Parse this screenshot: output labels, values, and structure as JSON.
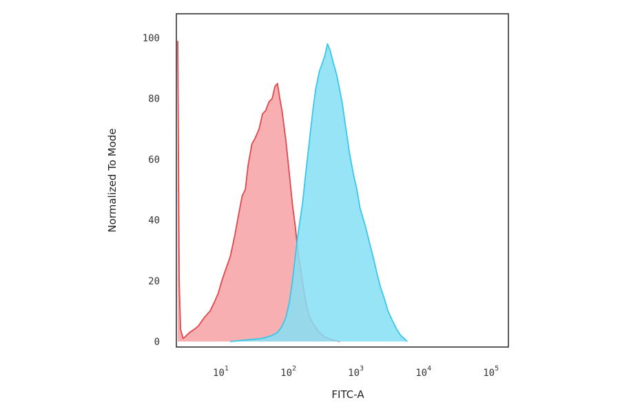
{
  "chart_data": {
    "type": "area",
    "title": "",
    "xlabel": "FITC-A",
    "ylabel": "Normalized To Mode",
    "x_scale": "log",
    "xlim": [
      2,
      150000
    ],
    "ylim": [
      0,
      100
    ],
    "x_ticks": [
      {
        "value": 10,
        "base": "10",
        "exp": "1"
      },
      {
        "value": 100,
        "base": "10",
        "exp": "2"
      },
      {
        "value": 1000,
        "base": "10",
        "exp": "3"
      },
      {
        "value": 10000,
        "base": "10",
        "exp": "4"
      },
      {
        "value": 100000,
        "base": "10",
        "exp": "5"
      }
    ],
    "y_ticks": [
      "0",
      "20",
      "40",
      "60",
      "80",
      "100"
    ],
    "grid": false,
    "legend": "none",
    "series": [
      {
        "color": "#e0474c",
        "fill": "#f7a1a3",
        "points": [
          [
            2.0,
            99
          ],
          [
            2.05,
            60
          ],
          [
            2.1,
            20
          ],
          [
            2.2,
            4
          ],
          [
            2.4,
            1
          ],
          [
            2.7,
            2
          ],
          [
            3.0,
            3
          ],
          [
            3.5,
            4
          ],
          [
            4.0,
            5
          ],
          [
            5.0,
            8
          ],
          [
            6.0,
            10
          ],
          [
            7.0,
            13
          ],
          [
            8.0,
            16
          ],
          [
            9.0,
            20
          ],
          [
            10,
            23
          ],
          [
            12,
            28
          ],
          [
            14,
            35
          ],
          [
            16,
            42
          ],
          [
            18,
            48
          ],
          [
            20,
            50
          ],
          [
            22,
            58
          ],
          [
            25,
            65
          ],
          [
            28,
            67
          ],
          [
            32,
            70
          ],
          [
            36,
            75
          ],
          [
            40,
            76
          ],
          [
            45,
            79
          ],
          [
            50,
            80
          ],
          [
            55,
            84
          ],
          [
            60,
            85
          ],
          [
            65,
            80
          ],
          [
            70,
            76
          ],
          [
            80,
            66
          ],
          [
            90,
            55
          ],
          [
            100,
            45
          ],
          [
            110,
            38
          ],
          [
            120,
            30
          ],
          [
            140,
            20
          ],
          [
            160,
            12
          ],
          [
            180,
            8
          ],
          [
            200,
            6
          ],
          [
            250,
            3
          ],
          [
            300,
            1.5
          ],
          [
            400,
            0.5
          ],
          [
            500,
            0
          ]
        ]
      },
      {
        "color": "#39c6e8",
        "fill": "#86dff6",
        "points": [
          [
            12,
            0
          ],
          [
            20,
            0.5
          ],
          [
            35,
            1
          ],
          [
            50,
            2
          ],
          [
            60,
            3
          ],
          [
            70,
            5
          ],
          [
            80,
            8
          ],
          [
            90,
            13
          ],
          [
            100,
            20
          ],
          [
            110,
            28
          ],
          [
            120,
            35
          ],
          [
            140,
            45
          ],
          [
            160,
            57
          ],
          [
            180,
            67
          ],
          [
            200,
            76
          ],
          [
            220,
            83
          ],
          [
            250,
            89
          ],
          [
            280,
            92
          ],
          [
            300,
            94
          ],
          [
            330,
            98
          ],
          [
            360,
            96
          ],
          [
            400,
            92
          ],
          [
            450,
            88
          ],
          [
            500,
            83
          ],
          [
            550,
            78
          ],
          [
            600,
            72
          ],
          [
            700,
            62
          ],
          [
            800,
            55
          ],
          [
            900,
            50
          ],
          [
            1000,
            44
          ],
          [
            1200,
            38
          ],
          [
            1400,
            32
          ],
          [
            1600,
            27
          ],
          [
            1800,
            22
          ],
          [
            2000,
            18
          ],
          [
            2300,
            14
          ],
          [
            2600,
            10
          ],
          [
            3000,
            7
          ],
          [
            3500,
            4
          ],
          [
            4000,
            2
          ],
          [
            4500,
            1
          ],
          [
            5000,
            0
          ]
        ]
      }
    ]
  }
}
